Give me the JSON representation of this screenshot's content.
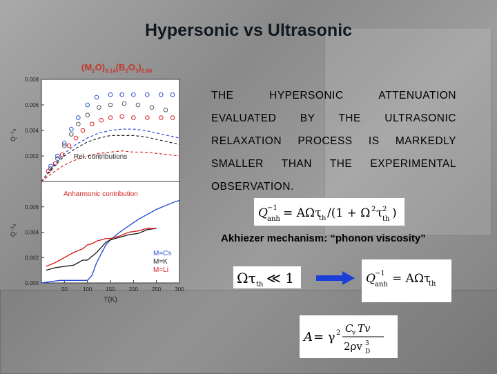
{
  "title": "Hypersonic vs Ultrasonic",
  "composition": {
    "parts": [
      "(M",
      "2",
      "O)",
      "0.14",
      "(B",
      "2",
      "O",
      "3",
      ")",
      "0.86"
    ]
  },
  "body_lines": [
    "THE HYPERSONIC ATTENUATION",
    "EVALUATED BY THE ULTRASONIC",
    "RELAXATION PROCESS IS MARKEDLY",
    "SMALLER THAN THE EXPERIMENTAL",
    "OBSERVATION."
  ],
  "akhiezer_text": "Akhiezer mechanism: “phonon viscosity”",
  "equations": {
    "q_anh_full": "Q⁻¹anh = AΩτth/(1 + Ω²τ²th)",
    "condition": "Ωτth ≪ 1",
    "q_anh_simple": "Q⁻¹anh = AΩτth",
    "a_def": "A = γ² CvTv / 2ρv³D"
  },
  "colors": {
    "Cs": "#2d4fd6",
    "K": "#222222",
    "Li": "#d62222",
    "arrow": "#1a3fd8"
  },
  "chart_data": [
    {
      "type": "scatter",
      "ylabel": "Q⁻¹₀",
      "ylim": [
        0.0,
        0.008
      ],
      "xlim": [
        0,
        300
      ],
      "ytick_labels": [
        "0.008",
        "0.006",
        "0.004",
        "0.002"
      ],
      "yticks": [
        0.008,
        0.006,
        0.004,
        0.002
      ],
      "annotation": "Rel. contributions",
      "series": [
        {
          "name": "Cs",
          "color": "#2d4fd6",
          "kind": "markers",
          "x": [
            20,
            35,
            50,
            65,
            80,
            100,
            120,
            150,
            175,
            200,
            230,
            260,
            285
          ],
          "y": [
            0.0012,
            0.002,
            0.003,
            0.0041,
            0.005,
            0.006,
            0.0066,
            0.0068,
            0.0068,
            0.0068,
            0.0068,
            0.0068,
            0.0068
          ]
        },
        {
          "name": "K",
          "color": "#555555",
          "kind": "markers",
          "x": [
            20,
            35,
            50,
            65,
            80,
            100,
            125,
            150,
            180,
            210,
            240,
            270
          ],
          "y": [
            0.001,
            0.0018,
            0.0028,
            0.0037,
            0.0045,
            0.0052,
            0.0058,
            0.006,
            0.0061,
            0.006,
            0.0058,
            0.0056
          ]
        },
        {
          "name": "Li",
          "color": "#d62222",
          "kind": "markers",
          "x": [
            15,
            30,
            45,
            60,
            75,
            90,
            110,
            130,
            150,
            175,
            200,
            230,
            260,
            285
          ],
          "y": [
            0.0008,
            0.0014,
            0.0021,
            0.0028,
            0.0034,
            0.004,
            0.0045,
            0.0048,
            0.005,
            0.0051,
            0.005,
            0.005,
            0.005,
            0.005
          ]
        },
        {
          "name": "Cs",
          "color": "#2d4fd6",
          "kind": "dashed",
          "x": [
            0,
            25,
            50,
            75,
            100,
            125,
            150,
            175,
            200,
            225,
            250,
            275,
            300
          ],
          "y": [
            0.0,
            0.0012,
            0.0022,
            0.0029,
            0.0034,
            0.0038,
            0.004,
            0.0041,
            0.0041,
            0.004,
            0.0038,
            0.0036,
            0.0034
          ]
        },
        {
          "name": "K",
          "color": "#222222",
          "kind": "dashed",
          "x": [
            0,
            25,
            50,
            75,
            100,
            125,
            150,
            175,
            200,
            225,
            250,
            275,
            300
          ],
          "y": [
            0.0,
            0.0011,
            0.002,
            0.0026,
            0.0031,
            0.0034,
            0.0036,
            0.0036,
            0.0036,
            0.0035,
            0.0033,
            0.0031,
            0.0029
          ]
        },
        {
          "name": "Li",
          "color": "#d62222",
          "kind": "dashed",
          "x": [
            0,
            25,
            50,
            75,
            100,
            125,
            150,
            175,
            200,
            225,
            250,
            275,
            300
          ],
          "y": [
            0.0,
            0.0007,
            0.0013,
            0.0017,
            0.002,
            0.0022,
            0.0023,
            0.0024,
            0.0023,
            0.0023,
            0.0022,
            0.0021,
            0.002
          ]
        }
      ]
    },
    {
      "type": "line",
      "annotation": "Anharmonic contribution",
      "ylabel": "Q⁻¹₀",
      "xlabel": "T(K)",
      "ylim": [
        0.0,
        0.008
      ],
      "xlim": [
        0,
        300
      ],
      "xticks": [
        50,
        100,
        150,
        200,
        250,
        300
      ],
      "yticks": [
        0.0,
        0.002,
        0.004,
        0.006
      ],
      "ytick_labels": [
        "0.000",
        "0.002",
        "0.004",
        "0.006"
      ],
      "legend": [
        "M=Cs",
        "M=K",
        "M=Li"
      ],
      "legend_placement": "bottom-right",
      "series": [
        {
          "name": "M=Cs",
          "color": "#2d4fd6",
          "x": [
            0,
            20,
            40,
            60,
            80,
            100,
            110,
            120,
            140,
            150,
            170,
            190,
            210,
            230,
            250,
            270,
            290,
            300
          ],
          "y": [
            0.0,
            0.0001,
            0.0002,
            0.0002,
            0.0002,
            0.0002,
            0.0006,
            0.0016,
            0.003,
            0.0034,
            0.004,
            0.0045,
            0.005,
            0.0054,
            0.0058,
            0.0061,
            0.0064,
            0.0065
          ]
        },
        {
          "name": "M=K",
          "color": "#222222",
          "x": [
            10,
            30,
            50,
            70,
            80,
            90,
            100,
            110,
            120,
            130,
            140,
            150,
            170,
            190,
            210,
            230,
            250
          ],
          "y": [
            0.001,
            0.0012,
            0.0013,
            0.0014,
            0.0016,
            0.0018,
            0.0018,
            0.0021,
            0.0024,
            0.0028,
            0.0032,
            0.0034,
            0.0036,
            0.0038,
            0.0039,
            0.0042,
            0.0043
          ]
        },
        {
          "name": "M=Li",
          "color": "#d62222",
          "x": [
            10,
            30,
            50,
            70,
            90,
            100,
            110,
            120,
            130,
            140,
            150,
            170,
            190,
            210,
            230,
            250
          ],
          "y": [
            0.0013,
            0.0016,
            0.002,
            0.0024,
            0.0027,
            0.003,
            0.0031,
            0.0033,
            0.0034,
            0.0035,
            0.0035,
            0.0037,
            0.004,
            0.0041,
            0.0043,
            0.0043
          ]
        }
      ]
    }
  ]
}
